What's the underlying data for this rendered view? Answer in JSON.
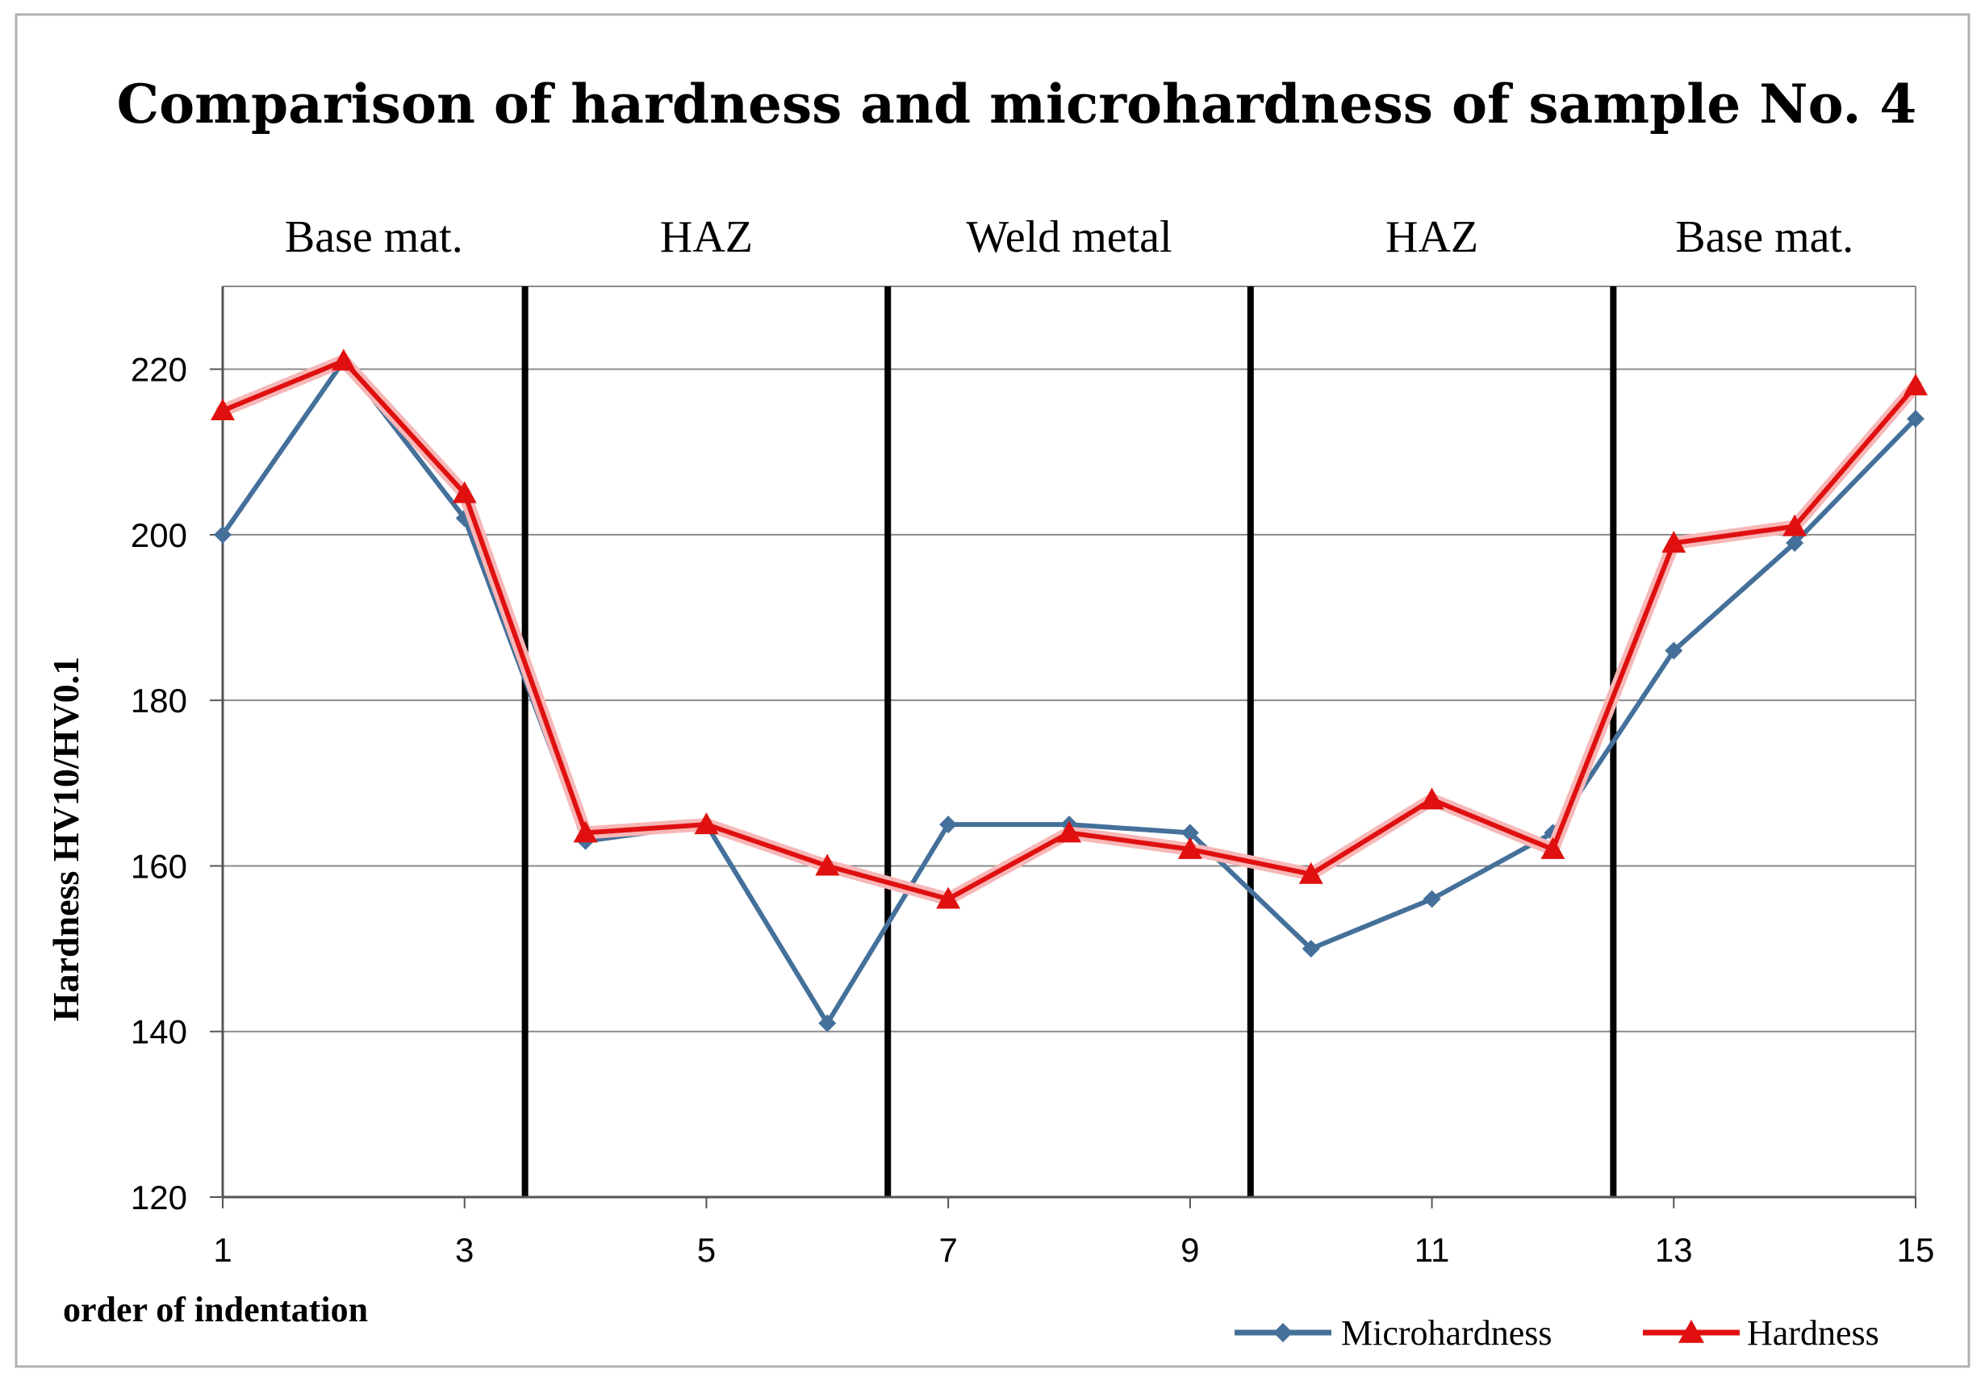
{
  "chart_data": {
    "type": "line",
    "title": "Comparison of hardness and microhardness of sample No. 4",
    "xlabel": "order of indentation",
    "ylabel": "Hardness HV10/HV0.1",
    "x": [
      1,
      2,
      3,
      4,
      5,
      6,
      7,
      8,
      9,
      10,
      11,
      12,
      13,
      14,
      15
    ],
    "x_tick_labels": [
      "1",
      "3",
      "5",
      "7",
      "9",
      "11",
      "13",
      "15"
    ],
    "x_tick_values": [
      1,
      3,
      5,
      7,
      9,
      11,
      13,
      15
    ],
    "xlim": [
      1,
      15
    ],
    "ylim": [
      120,
      230
    ],
    "y_ticks": [
      120,
      140,
      160,
      180,
      200,
      220
    ],
    "grid": true,
    "legend_position": "bottom-right",
    "regions": [
      {
        "label": "Base mat.",
        "from": 1,
        "to": 3.5
      },
      {
        "label": "HAZ",
        "from": 3.5,
        "to": 6.5
      },
      {
        "label": "Weld metal",
        "from": 6.5,
        "to": 9.5
      },
      {
        "label": "HAZ",
        "from": 9.5,
        "to": 12.5
      },
      {
        "label": "Base mat.",
        "from": 12.5,
        "to": 15
      }
    ],
    "boundaries": [
      3.5,
      6.5,
      9.5,
      12.5
    ],
    "series": [
      {
        "name": "Microhardness",
        "color": "#44709a",
        "marker": "diamond",
        "values": [
          200,
          221,
          202,
          163,
          165,
          141,
          165,
          165,
          164,
          150,
          156,
          164,
          186,
          199,
          214
        ]
      },
      {
        "name": "Hardness",
        "color": "#e01010",
        "marker": "triangle",
        "values": [
          215,
          221,
          205,
          164,
          165,
          160,
          156,
          164,
          162,
          159,
          168,
          162,
          199,
          201,
          218
        ]
      }
    ]
  }
}
